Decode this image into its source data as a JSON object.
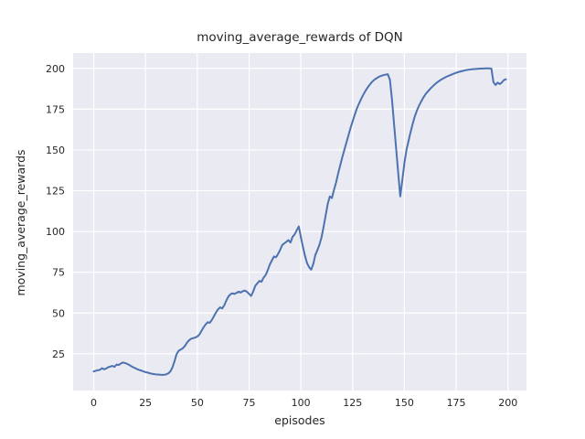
{
  "chart_data": {
    "type": "line",
    "title": "moving_average_rewards of DQN",
    "xlabel": "episodes",
    "ylabel": "moving_average_rewards",
    "x_ticks": [
      0,
      25,
      50,
      75,
      100,
      125,
      150,
      175,
      200
    ],
    "y_ticks": [
      25,
      50,
      75,
      100,
      125,
      150,
      175,
      200
    ],
    "xlim": [
      -9.95,
      208.95
    ],
    "ylim": [
      2.5,
      209.4
    ],
    "grid": true,
    "legend_position": "none",
    "colors": {
      "line": "#4C72B0",
      "axes_background": "#EAEAF2",
      "grid": "#FFFFFF",
      "text": "#262626",
      "figure_background": "#FFFFFF"
    },
    "series": [
      {
        "name": "moving average reward of DQN",
        "x_start": 0,
        "x_step": 1,
        "values": [
          14.2,
          14.6,
          15.0,
          15.2,
          16.2,
          15.5,
          16.0,
          16.8,
          17.2,
          17.6,
          17.0,
          18.4,
          18.1,
          19.0,
          19.7,
          19.4,
          18.9,
          18.3,
          17.5,
          16.8,
          16.2,
          15.6,
          15.1,
          14.7,
          14.2,
          13.8,
          13.5,
          13.1,
          12.8,
          12.6,
          12.4,
          12.3,
          12.2,
          12.1,
          12.2,
          12.4,
          13.0,
          14.2,
          16.6,
          20.4,
          24.8,
          26.9,
          27.6,
          28.4,
          29.8,
          31.8,
          33.3,
          34.2,
          34.6,
          35.0,
          35.6,
          36.8,
          39.0,
          41.2,
          43.0,
          44.4,
          44.0,
          45.7,
          48.0,
          50.3,
          52.2,
          53.5,
          52.8,
          54.7,
          57.6,
          60.1,
          61.5,
          62.1,
          61.7,
          62.4,
          63.1,
          62.6,
          63.4,
          63.8,
          63.0,
          61.7,
          60.5,
          63.2,
          66.7,
          68.2,
          69.7,
          69.2,
          71.7,
          73.3,
          76.2,
          79.7,
          82.2,
          84.7,
          84.2,
          86.2,
          88.7,
          91.7,
          92.7,
          93.7,
          94.7,
          93.2,
          96.7,
          98.2,
          100.7,
          103.1,
          96.6,
          90.6,
          85.1,
          80.6,
          78.1,
          76.6,
          80.1,
          85.6,
          88.6,
          92.0,
          96.5,
          103.0,
          110.0,
          117.0,
          121.5,
          120.5,
          125.5,
          130.0,
          135.5,
          140.5,
          145.5,
          150.0,
          154.5,
          159.0,
          163.5,
          167.5,
          171.5,
          175.2,
          178.2,
          181.0,
          183.5,
          185.8,
          187.8,
          189.6,
          191.2,
          192.5,
          193.5,
          194.3,
          195.0,
          195.5,
          195.9,
          196.2,
          196.4,
          193.0,
          181.0,
          166.0,
          151.0,
          136.0,
          121.5,
          131.5,
          142.0,
          150.0,
          155.5,
          161.0,
          166.0,
          170.5,
          174.0,
          177.0,
          179.5,
          181.8,
          183.8,
          185.4,
          186.8,
          188.2,
          189.4,
          190.6,
          191.6,
          192.5,
          193.3,
          194.0,
          194.7,
          195.3,
          195.8,
          196.3,
          196.8,
          197.3,
          197.7,
          198.1,
          198.4,
          198.7,
          199.0,
          199.2,
          199.4,
          199.5,
          199.6,
          199.7,
          199.8,
          199.9,
          199.9,
          200.0,
          200.0,
          200.0,
          199.9,
          191.5,
          189.8,
          191.3,
          190.4,
          191.3,
          192.8,
          193.3
        ]
      }
    ]
  }
}
